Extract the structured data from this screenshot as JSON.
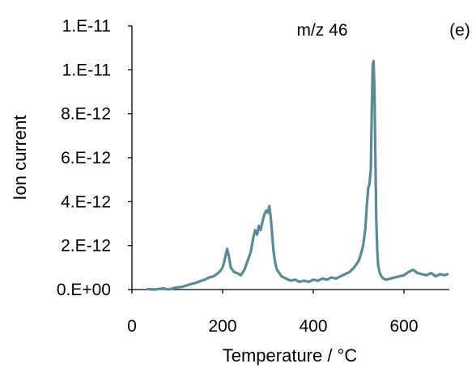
{
  "chart_data": {
    "type": "line",
    "title": "",
    "xlabel": "Temperature / °C",
    "ylabel": "Ion current",
    "xlim": [
      0,
      700
    ],
    "ylim": [
      0,
      1.2e-11
    ],
    "x_ticks": [
      {
        "value": 0,
        "label": "0"
      },
      {
        "value": 200,
        "label": "200"
      },
      {
        "value": 400,
        "label": "400"
      },
      {
        "value": 600,
        "label": "600"
      }
    ],
    "y_ticks": [
      {
        "value": 0,
        "label": "0.E+00"
      },
      {
        "value": 2e-12,
        "label": "2.E-12"
      },
      {
        "value": 4e-12,
        "label": "4.E-12"
      },
      {
        "value": 6e-12,
        "label": "6.E-12"
      },
      {
        "value": 8e-12,
        "label": "8.E-12"
      },
      {
        "value": 1e-11,
        "label": "1.E-11"
      },
      {
        "value": 1.2e-11,
        "label": "1.E-11"
      }
    ],
    "grid": false,
    "legend": "none",
    "annotations": [
      {
        "text": "m/z 46",
        "position": "top-center"
      },
      {
        "text": "(e)",
        "position": "top-right"
      }
    ],
    "series": [
      {
        "color": "#5b8a93",
        "x": [
          35,
          50,
          60,
          70,
          80,
          90,
          100,
          110,
          120,
          130,
          140,
          150,
          160,
          170,
          180,
          190,
          195,
          200,
          204,
          207,
          210,
          214,
          218,
          225,
          232,
          240,
          248,
          255,
          262,
          268,
          272,
          276,
          280,
          284,
          288,
          292,
          296,
          300,
          303,
          306,
          309,
          312,
          316,
          320,
          325,
          330,
          340,
          350,
          360,
          370,
          380,
          390,
          400,
          410,
          420,
          430,
          440,
          450,
          460,
          470,
          480,
          490,
          500,
          505,
          510,
          515,
          518,
          521,
          524,
          527,
          529,
          531,
          533,
          535,
          537,
          539,
          541,
          543,
          546,
          550,
          555,
          560,
          570,
          580,
          590,
          600,
          610,
          620,
          630,
          640,
          650,
          660,
          670,
          680,
          690,
          696
        ],
        "y": [
          2e-14,
          0.0,
          3e-14,
          5e-14,
          0.0,
          5e-14,
          1e-13,
          1.2e-13,
          1.8e-13,
          2.5e-13,
          3e-13,
          3.8e-13,
          4.5e-13,
          5.5e-13,
          6e-13,
          7.5e-13,
          8.5e-13,
          1e-12,
          1.3e-12,
          1.6e-12,
          1.85e-12,
          1.5e-12,
          1e-12,
          8e-13,
          7.5e-13,
          6.5e-13,
          9e-13,
          1.3e-12,
          1.7e-12,
          2.4e-12,
          2.7e-12,
          2.5e-12,
          2.9e-12,
          2.7e-12,
          3.1e-12,
          3.4e-12,
          3.6e-12,
          3.5e-12,
          3.8e-12,
          3.3e-12,
          2.6e-12,
          1.8e-12,
          1.2e-12,
          9e-13,
          7.5e-13,
          6e-13,
          5e-13,
          4e-13,
          4.5e-13,
          3.5e-13,
          4e-13,
          3.5e-13,
          4.5e-13,
          4e-13,
          5e-13,
          4.5e-13,
          5.5e-13,
          5e-13,
          6e-13,
          7e-13,
          8e-13,
          1e-12,
          1.3e-12,
          1.6e-12,
          2e-12,
          2.8e-12,
          3.8e-12,
          4.6e-12,
          4.8e-12,
          5.5e-12,
          8e-12,
          1.02e-11,
          1.04e-11,
          9e-12,
          6e-12,
          3.2e-12,
          1.8e-12,
          1.1e-12,
          8e-13,
          6e-13,
          5e-13,
          4.5e-13,
          5e-13,
          5.5e-13,
          6e-13,
          6.5e-13,
          8e-13,
          9e-13,
          7.5e-13,
          7e-13,
          6.5e-13,
          7.5e-13,
          6e-13,
          7e-13,
          6.5e-13,
          7e-13
        ]
      }
    ]
  }
}
